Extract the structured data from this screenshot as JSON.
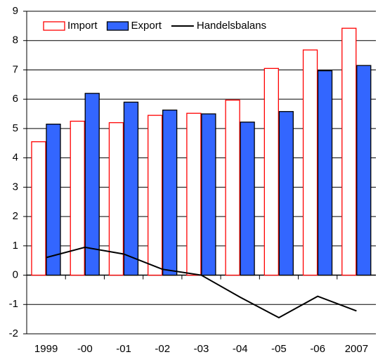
{
  "chart_data": {
    "type": "bar",
    "categories": [
      "1999",
      "-00",
      "-01",
      "-02",
      "-03",
      "-04",
      "-05",
      "-06",
      "2007"
    ],
    "series": [
      {
        "name": "Import",
        "color": "#ff0000",
        "fill": "#ffffff",
        "values": [
          4.55,
          5.25,
          5.2,
          5.45,
          5.52,
          5.97,
          7.05,
          7.68,
          8.42
        ]
      },
      {
        "name": "Export",
        "color": "#3366ff",
        "values": [
          5.15,
          6.2,
          5.9,
          5.63,
          5.5,
          5.22,
          5.58,
          6.97,
          7.15
        ]
      },
      {
        "name": "Handelsbalans",
        "type": "line",
        "color": "#000000",
        "values": [
          0.6,
          0.95,
          0.72,
          0.2,
          0.0,
          -0.75,
          -1.45,
          -0.72,
          -1.22
        ]
      }
    ],
    "ylim": [
      -2,
      9
    ],
    "yticks": [
      -2,
      -1,
      0,
      1,
      2,
      3,
      4,
      5,
      6,
      7,
      8,
      9
    ],
    "grid": true,
    "legend": "top"
  }
}
